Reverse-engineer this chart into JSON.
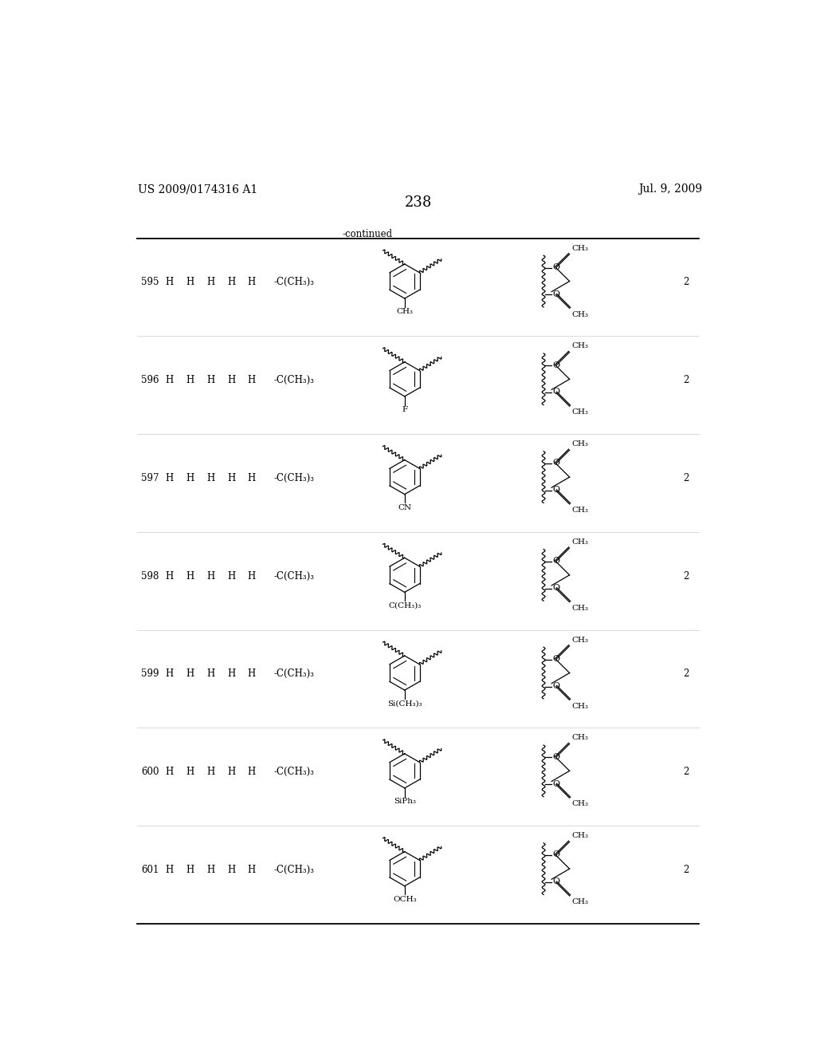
{
  "page_num": "238",
  "patent_left": "US 2009/0174316 A1",
  "patent_right": "Jul. 9, 2009",
  "continued_label": "-continued",
  "rows": [
    {
      "id": "595",
      "r6": "-C(CH₃)₃",
      "sub_left": "CH₃",
      "n": "2"
    },
    {
      "id": "596",
      "r6": "-C(CH₃)₃",
      "sub_left": "F",
      "n": "2"
    },
    {
      "id": "597",
      "r6": "-C(CH₃)₃",
      "sub_left": "CN",
      "n": "2"
    },
    {
      "id": "598",
      "r6": "-C(CH₃)₃",
      "sub_left": "C(CH₃)₃",
      "n": "2"
    },
    {
      "id": "599",
      "r6": "-C(CH₃)₃",
      "sub_left": "Si(CH₃)₃",
      "n": "2"
    },
    {
      "id": "600",
      "r6": "-C(CH₃)₃",
      "sub_left": "SiPh₃",
      "n": "2"
    },
    {
      "id": "601",
      "r6": "-C(CH₃)₃",
      "sub_left": "OCH₃",
      "n": "2"
    }
  ],
  "bg_color": "#ffffff",
  "text_color": "#000000"
}
